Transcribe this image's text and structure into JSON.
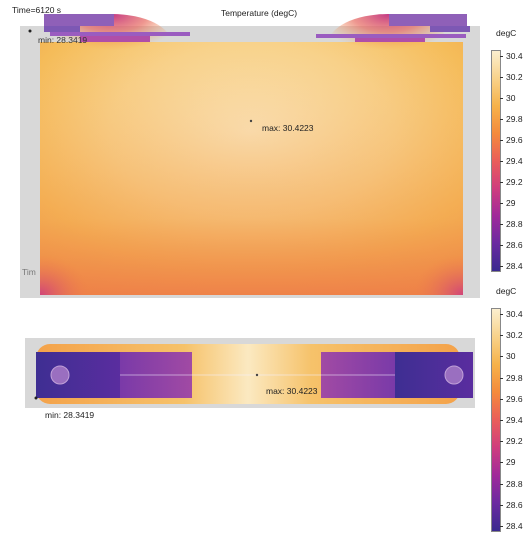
{
  "header": {
    "time_label": "Time=6120 s",
    "title": "Temperature (degC)"
  },
  "top_plot": {
    "min_label": "min: 28.3419",
    "max_label": "max: 30.4223",
    "side_label": "Tim"
  },
  "bottom_plot": {
    "min_label": "min: 28.3419",
    "max_label": "max: 30.4223"
  },
  "legend_top": {
    "unit": "degC",
    "ticks": [
      "30.4",
      "30.2",
      "30",
      "29.8",
      "29.6",
      "29.4",
      "29.2",
      "29",
      "28.8",
      "28.6",
      "28.4"
    ]
  },
  "legend_bottom": {
    "unit": "degC",
    "ticks": [
      "30.4",
      "30.2",
      "30",
      "29.8",
      "29.6",
      "29.4",
      "29.2",
      "29",
      "28.8",
      "28.6",
      "28.4"
    ]
  },
  "colors": {
    "colormap": [
      "#3a2a8f",
      "#6a2aa0",
      "#a02a9a",
      "#cf3d7e",
      "#ea5e5a",
      "#f48a3c",
      "#f6b24a",
      "#f8d28a",
      "#fbefcf"
    ],
    "domain_gray": "#d8d8d8"
  }
}
